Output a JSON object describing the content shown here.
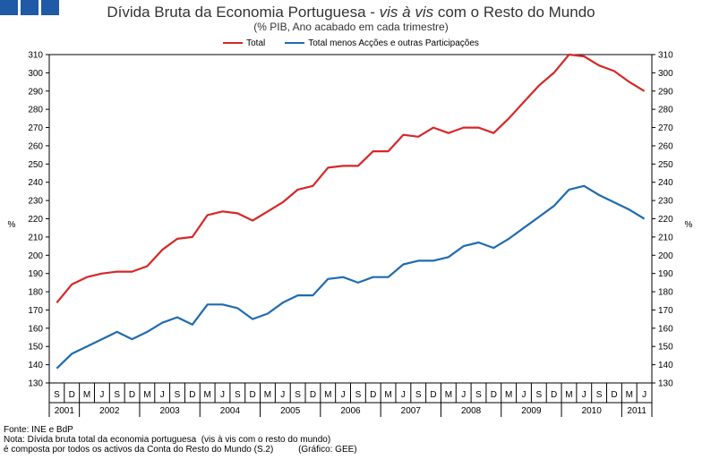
{
  "title_plain": "Dívida Bruta da Economia Portuguesa - ",
  "title_italic": "vis à vis",
  "title_rest": " com o Resto do Mundo",
  "subtitle": "(% PIB, Ano acabado em cada trimestre)",
  "notes": {
    "source": "Fonte: INE e BdP",
    "note1": "Nota: Dívida bruta total da economia portuguesa  (vis à vis com o resto do mundo)",
    "note2": "é composta por todos os activos da Conta do Resto do Mundo (S.2)          (Gráfico: GEE)"
  },
  "colors": {
    "total": "#d62728",
    "excl": "#1f6bb0",
    "logo": "#1f5aa6"
  },
  "chart_data": {
    "type": "line",
    "ylabel": "%",
    "ylim": [
      130,
      310
    ],
    "y_ticks": [
      130,
      140,
      150,
      160,
      170,
      180,
      190,
      200,
      210,
      220,
      230,
      240,
      250,
      260,
      270,
      280,
      290,
      300,
      310
    ],
    "grid": false,
    "legend": "top-center",
    "quarter_labels": [
      "S",
      "D",
      "M",
      "J",
      "S",
      "D",
      "M",
      "J",
      "S",
      "D",
      "M",
      "J",
      "S",
      "D",
      "M",
      "J",
      "S",
      "D",
      "M",
      "J",
      "S",
      "D",
      "M",
      "J",
      "S",
      "D",
      "M",
      "J",
      "S",
      "D",
      "M",
      "J",
      "S",
      "D",
      "M",
      "J",
      "S",
      "D",
      "M",
      "J"
    ],
    "years": [
      {
        "label": "2001",
        "span": 2
      },
      {
        "label": "2002",
        "span": 4
      },
      {
        "label": "2003",
        "span": 4
      },
      {
        "label": "2004",
        "span": 4
      },
      {
        "label": "2005",
        "span": 4
      },
      {
        "label": "2006",
        "span": 4
      },
      {
        "label": "2007",
        "span": 4
      },
      {
        "label": "2008",
        "span": 4
      },
      {
        "label": "2009",
        "span": 4
      },
      {
        "label": "2010",
        "span": 4
      },
      {
        "label": "2011",
        "span": 2
      }
    ],
    "series": [
      {
        "name": "Total",
        "values": [
          174,
          184,
          188,
          190,
          191,
          191,
          194,
          203,
          209,
          210,
          222,
          224,
          223,
          219,
          224,
          229,
          236,
          238,
          248,
          249,
          249,
          257,
          257,
          266,
          265,
          270,
          267,
          270,
          270,
          267,
          275,
          284,
          293,
          300,
          310,
          309,
          304,
          301,
          295,
          290
        ]
      },
      {
        "name": "Total menos Acções e outras Participações",
        "values": [
          138,
          146,
          150,
          154,
          158,
          154,
          158,
          163,
          166,
          162,
          173,
          173,
          171,
          165,
          168,
          174,
          178,
          178,
          187,
          188,
          185,
          188,
          188,
          195,
          197,
          197,
          199,
          205,
          207,
          204,
          209,
          215,
          221,
          227,
          236,
          238,
          233,
          229,
          225,
          220
        ]
      }
    ]
  }
}
